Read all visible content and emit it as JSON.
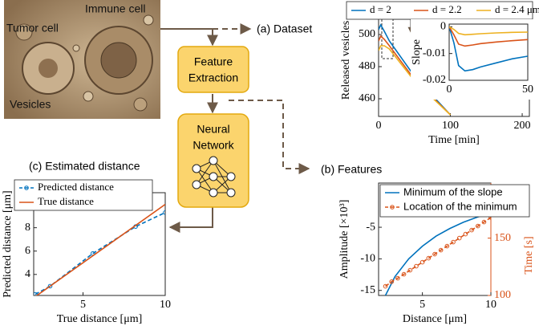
{
  "diagram": {
    "image_labels": [
      "Immune cell",
      "Tumor cell",
      "Vesicles"
    ],
    "boxes": [
      [
        "Feature",
        "Extraction"
      ],
      [
        "Neural",
        "Network"
      ]
    ],
    "panel_labels": [
      "(a) Dataset",
      "(b) Features",
      "(c) Estimated distance"
    ]
  },
  "chart_data": [
    {
      "type": "line",
      "xlabel": "Time [min]",
      "ylabel": "Released vesicles",
      "legend": "top",
      "x": [
        0,
        3,
        8,
        15,
        50,
        100
      ],
      "xlim": [
        0,
        210
      ],
      "xticks": [
        0,
        100,
        200
      ],
      "ylim": [
        449,
        519
      ],
      "yticks": [
        460,
        480,
        500
      ],
      "series": [
        {
          "name": "d = 2",
          "color": "#0072bd",
          "values": [
            503,
            506,
            502,
            496,
            474,
            450
          ]
        },
        {
          "name": "d = 2.2",
          "color": "#d95319",
          "values": [
            496,
            499,
            497,
            493,
            472,
            450
          ]
        },
        {
          "name": "d = 2.4 μm",
          "color": "#edb120",
          "values": [
            490,
            493,
            493,
            491,
            471,
            450
          ]
        }
      ]
    },
    {
      "type": "line",
      "ylabel": "Slope",
      "x": [
        0,
        3,
        6,
        10,
        15,
        20,
        30,
        40,
        50
      ],
      "xlim": [
        0,
        50
      ],
      "xticks": [
        0,
        50
      ],
      "ylim": [
        -0.02,
        0.001
      ],
      "yticks": [
        0,
        -0.01,
        -0.02
      ],
      "series": [
        {
          "color": "#0072bd",
          "values": [
            0,
            -0.006,
            -0.0145,
            -0.0165,
            -0.016,
            -0.015,
            -0.0135,
            -0.012,
            -0.011
          ]
        },
        {
          "color": "#d95319",
          "values": [
            0,
            -0.003,
            -0.0065,
            -0.0072,
            -0.0068,
            -0.0063,
            -0.0057,
            -0.0052,
            -0.0048
          ]
        },
        {
          "color": "#edb120",
          "values": [
            0,
            -0.001,
            -0.0025,
            -0.003,
            -0.0028,
            -0.0026,
            -0.0023,
            -0.0021,
            -0.002
          ]
        }
      ]
    },
    {
      "type": "line",
      "xlabel": "Distance [μm]",
      "ylabel": "Amplitude [×10³]",
      "y2label": "Time [s]",
      "legend": "upper right",
      "xlim": [
        1.8,
        10
      ],
      "xticks": [
        5,
        10
      ],
      "ylim": [
        -15.8,
        2
      ],
      "yticks": [
        -5,
        -10,
        -15
      ],
      "y2lim": [
        100,
        198
      ],
      "y2ticks": [
        150,
        100
      ],
      "y2color": "#d95319",
      "series": [
        {
          "name": "Minimum of the slope",
          "color": "#0072bd",
          "x": [
            2.3,
            3,
            4,
            5,
            6,
            7,
            8,
            9,
            10
          ],
          "values": [
            -15.8,
            -12.8,
            -10,
            -8,
            -6.4,
            -5.2,
            -4.2,
            -3.4,
            -2.7
          ]
        },
        {
          "name": "Location of the minimum",
          "color": "#d95319",
          "axis": "y2",
          "marker": "o",
          "dash": true,
          "x": [
            2.3,
            2.75,
            3.2,
            3.65,
            4.1,
            4.55,
            5,
            5.45,
            5.9,
            6.35,
            6.8,
            7.25,
            7.7,
            8.15,
            8.6,
            9.05,
            9.5,
            10
          ],
          "values": [
            108,
            112,
            115,
            118.5,
            122,
            125.5,
            129,
            132.5,
            136,
            139.5,
            143,
            146.5,
            150,
            153.5,
            157,
            160.5,
            164,
            168
          ]
        }
      ]
    },
    {
      "type": "line",
      "xlabel": "True distance [μm]",
      "ylabel": "Predicted distance [μm]",
      "legend": "upper left",
      "xlim": [
        2,
        10
      ],
      "xticks": [
        5,
        10
      ],
      "ylim": [
        2.2,
        11
      ],
      "yticks": [
        4,
        6,
        8,
        10
      ],
      "series": [
        {
          "name": "Predicted distance",
          "color": "#0072bd",
          "marker": "o",
          "dash": true,
          "x": [
            2.1,
            3.0,
            5.6,
            8.2,
            10
          ],
          "values": [
            2.3,
            3.0,
            5.8,
            8.1,
            9.3
          ]
        },
        {
          "name": "True distance",
          "color": "#d95319",
          "x": [
            2,
            10
          ],
          "values": [
            2,
            10
          ]
        }
      ]
    }
  ]
}
